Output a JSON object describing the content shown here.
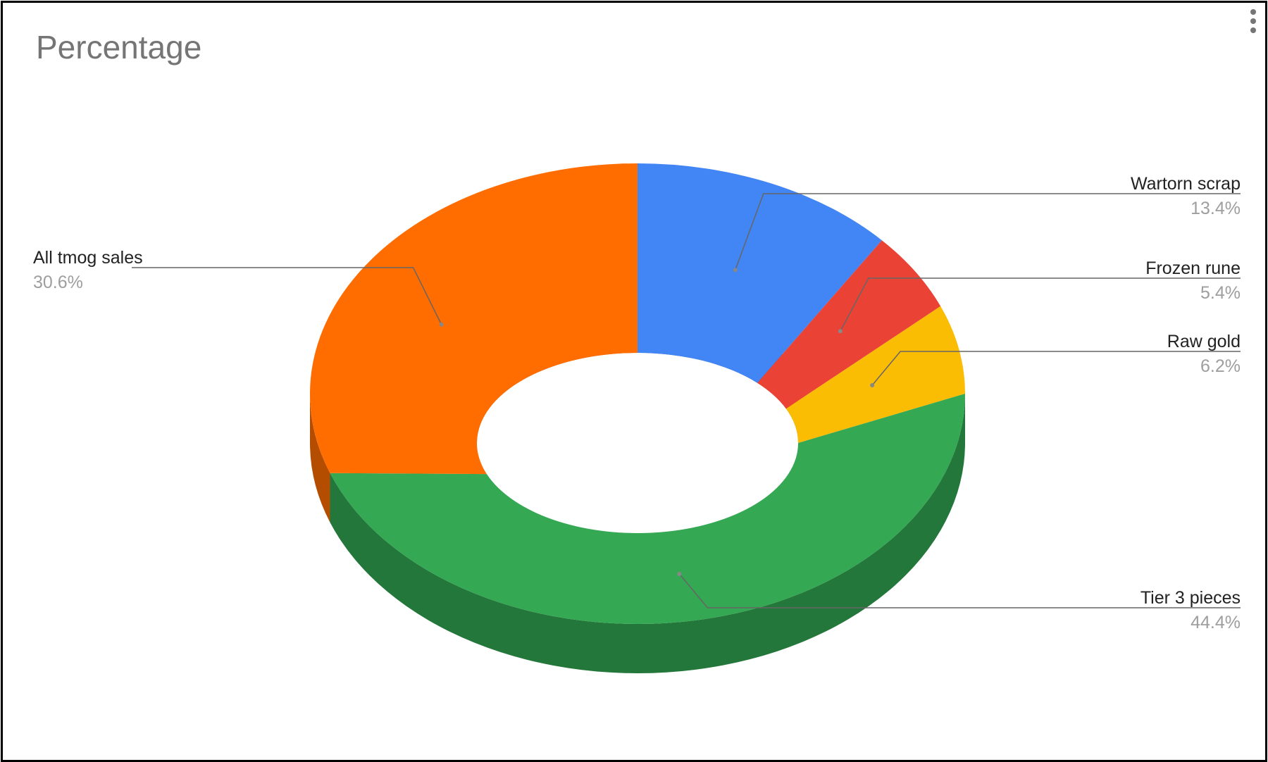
{
  "chart_data": {
    "type": "pie",
    "title": "Percentage",
    "donut": true,
    "three_d": true,
    "legend": "labeled",
    "slices": [
      {
        "label": "Wartorn scrap",
        "value": 13.4,
        "display": "13.4%",
        "color": "#4285f4",
        "side_color": "#2f5eb0"
      },
      {
        "label": "Frozen rune",
        "value": 5.4,
        "display": "5.4%",
        "color": "#ea4335",
        "side_color": "#a52f25"
      },
      {
        "label": "Raw gold",
        "value": 6.2,
        "display": "6.2%",
        "color": "#fbbc04",
        "side_color": "#b38500"
      },
      {
        "label": "Tier 3 pieces",
        "value": 44.4,
        "display": "44.4%",
        "color": "#34a853",
        "side_color": "#24773b"
      },
      {
        "label": "All tmog sales",
        "value": 30.6,
        "display": "30.6%",
        "color": "#ff6d01",
        "side_color": "#b54d00"
      }
    ]
  },
  "menu": {
    "icon": "more-vert-icon"
  }
}
